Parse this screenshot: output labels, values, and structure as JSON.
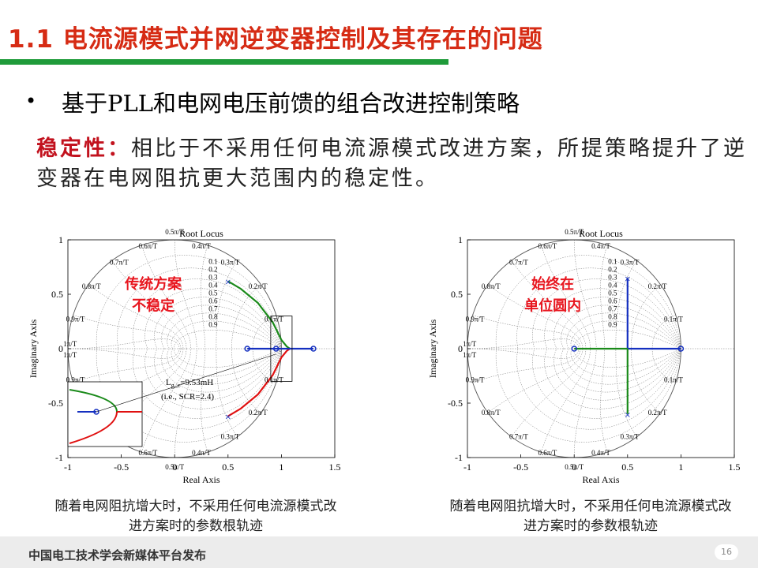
{
  "slide": {
    "title": "1.1 电流源模式并网逆变器控制及其存在的问题",
    "bullet": "基于PLL和电网电压前馈的组合改进控制策略",
    "para_label": "稳定性：",
    "para_body": "相比于不采用任何电流源模式改进方案，所提策略提升了逆变器在电网阻抗更大范围内的稳定性。",
    "page_number": "16",
    "footer": "中国电工技术学会新媒体平台发布"
  },
  "left_plot": {
    "overlay_line1": "传统方案",
    "overlay_line2": "不稳定",
    "annotation_line1": "L",
    "annotation_sub": "g_c",
    "annotation_rest": "=9.53mH",
    "annotation_line2": "(i.e., SCR=2.4)",
    "caption_line1": "随着电网阻抗增大时，不采用任何电流源模式改",
    "caption_line2": "进方案时的参数根轨迹"
  },
  "right_plot": {
    "overlay_line1": "始终在",
    "overlay_line2": "单位圆内",
    "caption_line1": "随着电网阻抗增大时，不采用任何电流源模式改",
    "caption_line2": "进方案时的参数根轨迹"
  },
  "chart_data": [
    {
      "type": "scatter",
      "title": "Root Locus",
      "xlabel": "Real Axis",
      "ylabel": "Imaginary Axis",
      "xlim": [
        -1,
        1.5
      ],
      "ylim": [
        -1,
        1
      ],
      "xticks": [
        "-1",
        "-0.5",
        "0",
        "0.5",
        "1",
        "1.5"
      ],
      "yticks": [
        "1",
        "0.5",
        "0",
        "-0.5",
        "-1"
      ],
      "grid": "z-plane damping/natural-frequency grid",
      "series": [
        {
          "color": "#1a8a1a",
          "x": [
            0.5,
            0.62,
            0.78,
            0.92,
            1.0,
            1.05,
            1.08
          ],
          "y": [
            0.62,
            0.55,
            0.42,
            0.24,
            0.08,
            0.02,
            0
          ]
        },
        {
          "color": "#e01010",
          "x": [
            0.5,
            0.62,
            0.78,
            0.92,
            1.0,
            1.05,
            1.08
          ],
          "y": [
            -0.62,
            -0.55,
            -0.42,
            -0.24,
            -0.08,
            -0.02,
            0
          ]
        },
        {
          "color": "#1530c0",
          "x": [
            0.68,
            0.95,
            1.3
          ],
          "y": [
            0,
            0,
            0
          ]
        }
      ]
    },
    {
      "type": "scatter",
      "title": "Root Locus",
      "xlabel": "Real Axis",
      "ylabel": "Imaginary Axis",
      "xlim": [
        -1,
        1.5
      ],
      "ylim": [
        -1,
        1
      ],
      "xticks": [
        "-1",
        "-0.5",
        "0",
        "0.5",
        "1",
        "1.5"
      ],
      "yticks": [
        "1",
        "0.5",
        "0",
        "-0.5",
        "-1"
      ],
      "grid": "z-plane damping/natural-frequency grid",
      "series": [
        {
          "color": "#1530c0",
          "x": [
            0.5,
            0.5,
            1.0
          ],
          "y": [
            0.65,
            0,
            0
          ]
        },
        {
          "color": "#1a8a1a",
          "x": [
            0.5,
            0.5
          ],
          "y": [
            0,
            -0.6
          ]
        },
        {
          "color": "#1a8a1a",
          "x": [
            0,
            0.5
          ],
          "y": [
            0,
            0
          ]
        }
      ]
    }
  ],
  "z_grid": {
    "wn_labels": [
      "0.5π/T",
      "0.6π/T",
      "0.4π/T",
      "0.7π/T",
      "0.3π/T",
      "0.8π/T",
      "0.2π/T",
      "0.9π/T",
      "0.1π/T",
      "1π/T"
    ],
    "zeta_labels": [
      "0.1",
      "0.2",
      "0.3",
      "0.4",
      "0.5",
      "0.6",
      "0.7",
      "0.8",
      "0.9"
    ]
  }
}
